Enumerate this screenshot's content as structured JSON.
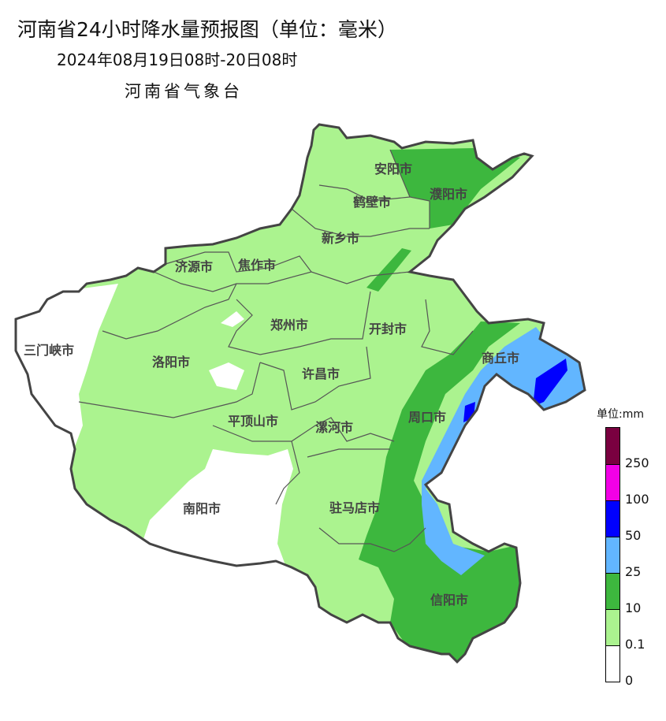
{
  "header": {
    "title": "河南省24小时降水量预报图（单位：毫米）",
    "subtitle": "2024年08月19日08时-20日08时",
    "agency": "河南省气象台"
  },
  "map": {
    "cities": [
      "安阳市",
      "濮阳市",
      "鹤壁市",
      "新乡市",
      "济源市",
      "焦作市",
      "郑州市",
      "开封市",
      "商丘市",
      "三门峡市",
      "洛阳市",
      "许昌市",
      "平顶山市",
      "周口市",
      "漯河市",
      "南阳市",
      "驻马店市",
      "信阳市"
    ]
  },
  "legend": {
    "title": "单位:mm",
    "bins": [
      {
        "color": "#7a0040",
        "label": "250"
      },
      {
        "color": "#f200e6",
        "label": "100"
      },
      {
        "color": "#0000fe",
        "label": "50"
      },
      {
        "color": "#62b6ff",
        "label": "25"
      },
      {
        "color": "#3db73e",
        "label": "10"
      },
      {
        "color": "#abf38f",
        "label": "0.1"
      },
      {
        "color": "#ffffff",
        "label": "0"
      }
    ]
  }
}
